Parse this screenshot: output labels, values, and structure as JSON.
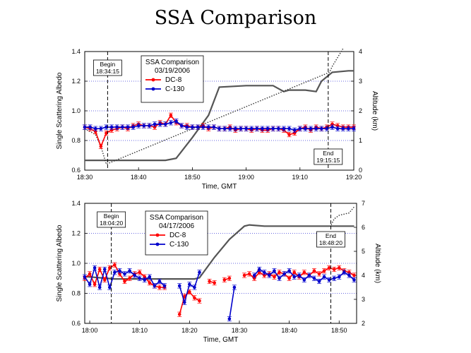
{
  "title": "SSA Comparison",
  "colors": {
    "dc8": "#ff0000",
    "c130": "#0000cc",
    "altitude": "#555555",
    "grid": "#3a3ad8",
    "marker": "#000000"
  },
  "chart_data": [
    {
      "type": "line",
      "title": "SSA Comparison",
      "date": "03/19/2006",
      "xlabel": "Time, GMT",
      "ylabel": "Single Scattering Albedo",
      "y2label": "Altitude  (km)",
      "xlim": [
        0,
        50
      ],
      "ylim": [
        0.6,
        1.4
      ],
      "y2lim": [
        0,
        4
      ],
      "xticks": [
        0,
        10,
        20,
        30,
        40,
        50
      ],
      "xtick_labels": [
        "18:30",
        "18:40",
        "18:50",
        "19:00",
        "19:10",
        "19:20"
      ],
      "yticks": [
        0.6,
        0.8,
        1.0,
        1.2,
        1.4
      ],
      "ytick_labels": [
        "0.6",
        "0.8",
        "1.0",
        "1.2",
        "1.4"
      ],
      "y2ticks": [
        0,
        1,
        2,
        3,
        4
      ],
      "y2tick_labels": [
        "0",
        "1",
        "2",
        "3",
        "4"
      ],
      "grid_y": [
        0.8,
        1.0,
        1.2
      ],
      "begin": {
        "label": "Begin",
        "time": "18:34:15",
        "x": 4.25
      },
      "end": {
        "label": "End",
        "time": "19:15:15",
        "x": 45.25
      },
      "series": [
        {
          "name": "DC-8",
          "x": [
            0,
            1,
            2,
            3,
            4,
            5,
            6,
            7,
            8,
            9,
            10,
            11,
            12,
            13,
            14,
            15,
            16,
            17,
            18,
            19,
            20,
            21,
            22,
            23,
            24,
            25,
            26,
            27,
            28,
            29,
            30,
            31,
            32,
            33,
            34,
            35,
            36,
            37,
            38,
            39,
            40,
            41,
            42,
            43,
            44,
            45,
            46,
            47,
            48,
            49,
            50
          ],
          "values": [
            0.89,
            0.88,
            0.86,
            0.76,
            0.85,
            0.87,
            0.88,
            0.89,
            0.88,
            0.9,
            0.91,
            0.9,
            0.9,
            0.89,
            0.92,
            0.91,
            0.97,
            0.92,
            0.9,
            0.9,
            0.89,
            0.89,
            0.9,
            0.88,
            0.89,
            0.88,
            0.88,
            0.89,
            0.87,
            0.88,
            0.88,
            0.87,
            0.88,
            0.87,
            0.87,
            0.88,
            0.88,
            0.87,
            0.84,
            0.85,
            0.88,
            0.89,
            0.87,
            0.89,
            0.88,
            0.89,
            0.91,
            0.9,
            0.89,
            0.89,
            0.89
          ]
        },
        {
          "name": "C-130",
          "x": [
            0,
            1,
            2,
            3,
            4,
            5,
            6,
            7,
            8,
            9,
            10,
            11,
            12,
            13,
            14,
            15,
            16,
            17,
            18,
            19,
            20,
            21,
            22,
            23,
            24,
            25,
            26,
            27,
            28,
            29,
            30,
            31,
            32,
            33,
            34,
            35,
            36,
            37,
            38,
            39,
            40,
            41,
            42,
            43,
            44,
            45,
            46,
            47,
            48,
            49,
            50
          ],
          "values": [
            0.89,
            0.89,
            0.88,
            0.88,
            0.89,
            0.89,
            0.89,
            0.89,
            0.89,
            0.89,
            0.9,
            0.9,
            0.9,
            0.91,
            0.91,
            0.91,
            0.92,
            0.93,
            0.9,
            0.89,
            0.89,
            0.89,
            0.89,
            0.89,
            0.89,
            0.88,
            0.88,
            0.88,
            0.88,
            0.88,
            0.88,
            0.88,
            0.88,
            0.88,
            0.88,
            0.88,
            0.88,
            0.88,
            0.88,
            0.87,
            0.88,
            0.88,
            0.88,
            0.88,
            0.88,
            0.88,
            0.89,
            0.88,
            0.88,
            0.88,
            0.88
          ]
        },
        {
          "name": "Altitude",
          "axis": "right",
          "x": [
            0,
            10,
            15,
            17,
            20,
            23,
            25,
            30,
            35,
            37,
            38,
            41,
            43,
            44,
            46,
            49,
            50
          ],
          "values": [
            0.33,
            0.33,
            0.33,
            0.4,
            1.1,
            1.85,
            2.8,
            2.85,
            2.85,
            2.65,
            2.7,
            2.7,
            2.65,
            3.0,
            3.3,
            3.35,
            3.35
          ]
        },
        {
          "name": "Aircraft altitude (dotted)",
          "axis": "right",
          "x": [
            0,
            2,
            3,
            4,
            45.5,
            46,
            47,
            48
          ],
          "values": [
            1.4,
            1.2,
            0.8,
            0.2,
            3.3,
            3.5,
            3.8,
            4.1
          ]
        }
      ]
    },
    {
      "type": "line",
      "title": "SSA Comparison",
      "date": "04/17/2006",
      "xlabel": "Time, GMT",
      "ylabel": "Single Scattering Albedo",
      "y2label": "Altitude  (km)",
      "xlim": [
        -1,
        53.5
      ],
      "ylim": [
        0.6,
        1.4
      ],
      "y2lim": [
        2,
        7
      ],
      "xticks": [
        0,
        10,
        20,
        30,
        40,
        50
      ],
      "xtick_labels": [
        "18:00",
        "18:10",
        "18:20",
        "18:30",
        "18:40",
        "18:50"
      ],
      "yticks": [
        0.6,
        0.8,
        1.0,
        1.2,
        1.4
      ],
      "ytick_labels": [
        "0.6",
        "0.8",
        "1.0",
        "1.2",
        "1.4"
      ],
      "y2ticks": [
        2,
        3,
        4,
        5,
        6,
        7
      ],
      "y2tick_labels": [
        "2",
        "3",
        "4",
        "5",
        "6",
        "7"
      ],
      "grid_y": [
        0.8,
        1.0,
        1.2
      ],
      "begin": {
        "label": "Begin",
        "time": "18:04:20",
        "x": 4.33
      },
      "end": {
        "label": "End",
        "time": "18:48:20",
        "x": 48.33
      },
      "series": [
        {
          "name": "DC-8",
          "x": [
            -1,
            0,
            1,
            2,
            3,
            4,
            5,
            6,
            7,
            8,
            9,
            10,
            11,
            12,
            13,
            14,
            15,
            null,
            18,
            19,
            20,
            21,
            22,
            null,
            24,
            25,
            null,
            27,
            28,
            null,
            31,
            32,
            33,
            34,
            35,
            36,
            37,
            38,
            39,
            40,
            41,
            42,
            43,
            44,
            45,
            46,
            47,
            48,
            49,
            50,
            51,
            52,
            53
          ],
          "values": [
            0.9,
            0.93,
            0.86,
            0.96,
            0.89,
            0.97,
            0.99,
            0.93,
            0.88,
            0.9,
            0.93,
            0.94,
            0.91,
            0.87,
            0.85,
            0.84,
            0.84,
            null,
            0.66,
            0.78,
            0.81,
            0.77,
            0.75,
            null,
            0.88,
            0.87,
            null,
            0.89,
            0.9,
            null,
            0.92,
            0.93,
            0.9,
            0.94,
            0.92,
            0.93,
            0.91,
            0.94,
            0.93,
            0.9,
            0.94,
            0.91,
            0.94,
            0.92,
            0.95,
            0.93,
            0.95,
            0.97,
            0.96,
            0.97,
            0.95,
            0.94,
            0.92
          ]
        },
        {
          "name": "C-130",
          "x": [
            -1,
            0,
            1,
            2,
            3,
            4,
            5,
            6,
            7,
            8,
            9,
            10,
            11,
            12,
            13,
            14,
            15,
            null,
            18,
            19,
            20,
            21,
            22,
            null,
            28,
            29,
            30,
            31,
            null,
            33,
            34,
            35,
            36,
            37,
            38,
            39,
            40,
            41,
            42,
            43,
            44,
            45,
            46,
            47,
            48,
            49,
            50,
            51,
            52,
            53
          ],
          "values": [
            0.91,
            0.86,
            0.97,
            0.84,
            0.96,
            0.84,
            0.94,
            0.95,
            0.93,
            0.95,
            0.92,
            0.9,
            0.89,
            0.91,
            0.85,
            0.88,
            0.85,
            null,
            0.85,
            0.74,
            0.86,
            0.84,
            0.94,
            null,
            0.63,
            0.84,
            null,
            null,
            null,
            0.92,
            0.96,
            0.94,
            0.92,
            0.95,
            0.9,
            0.93,
            0.95,
            0.91,
            0.92,
            0.89,
            0.92,
            0.9,
            0.88,
            0.91,
            0.89,
            0.9,
            0.91,
            0.94,
            0.92,
            0.89
          ]
        },
        {
          "name": "Altitude",
          "axis": "right",
          "x": [
            -1,
            5,
            10,
            15,
            20,
            21,
            22,
            25,
            28,
            31,
            32,
            35,
            40,
            45,
            50,
            53
          ],
          "values": [
            3.95,
            3.85,
            3.85,
            3.85,
            3.85,
            3.85,
            3.9,
            4.75,
            5.5,
            6.05,
            6.1,
            6.05,
            6.05,
            6.05,
            6.05,
            6.05
          ]
        },
        {
          "name": "Aircraft altitude (dotted)",
          "axis": "right",
          "x": [
            48.4,
            49,
            50,
            51,
            52,
            53
          ],
          "values": [
            6.1,
            6.35,
            6.5,
            6.55,
            6.6,
            6.85
          ]
        }
      ]
    }
  ],
  "legend": {
    "title": "SSA Comparison",
    "dc8": "DC-8",
    "c130": "C-130"
  }
}
